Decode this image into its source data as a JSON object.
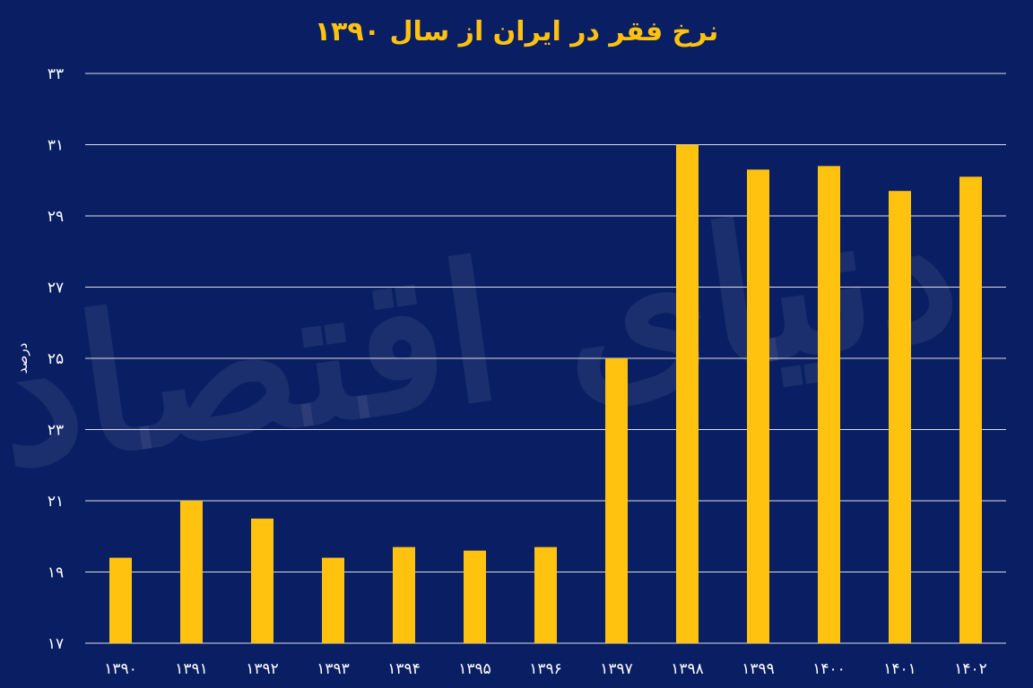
{
  "title": "نرخ فقر در ایران از سال ۱۳۹۰",
  "watermark": "دنیای اقتصاد",
  "colors": {
    "background": "#0a1f63",
    "bar": "#ffc20e",
    "title": "#ffc20e",
    "grid": "#ffffff",
    "text": "#ffffff"
  },
  "chart_data": {
    "type": "bar",
    "categories": [
      "۱۳۹۰",
      "۱۳۹۱",
      "۱۳۹۲",
      "۱۳۹۳",
      "۱۳۹۴",
      "۱۳۹۵",
      "۱۳۹۶",
      "۱۳۹۷",
      "۱۳۹۸",
      "۱۳۹۹",
      "۱۴۰۰",
      "۱۴۰۱",
      "۱۴۰۲"
    ],
    "values": [
      19.4,
      21.0,
      20.5,
      19.4,
      19.7,
      19.6,
      19.7,
      25.0,
      31.0,
      30.3,
      30.4,
      29.7,
      30.1
    ],
    "title": "نرخ فقر در ایران از سال ۱۳۹۰",
    "xlabel": "",
    "ylabel": "درصد",
    "ylim": [
      17,
      33
    ],
    "yticks": [
      17,
      19,
      21,
      23,
      25,
      27,
      29,
      31,
      33
    ],
    "ytick_labels": [
      "۱۷",
      "۱۹",
      "۲۱",
      "۲۳",
      "۲۵",
      "۲۷",
      "۲۹",
      "۳۱",
      "۳۳"
    ],
    "grid": true,
    "legend": "none"
  }
}
